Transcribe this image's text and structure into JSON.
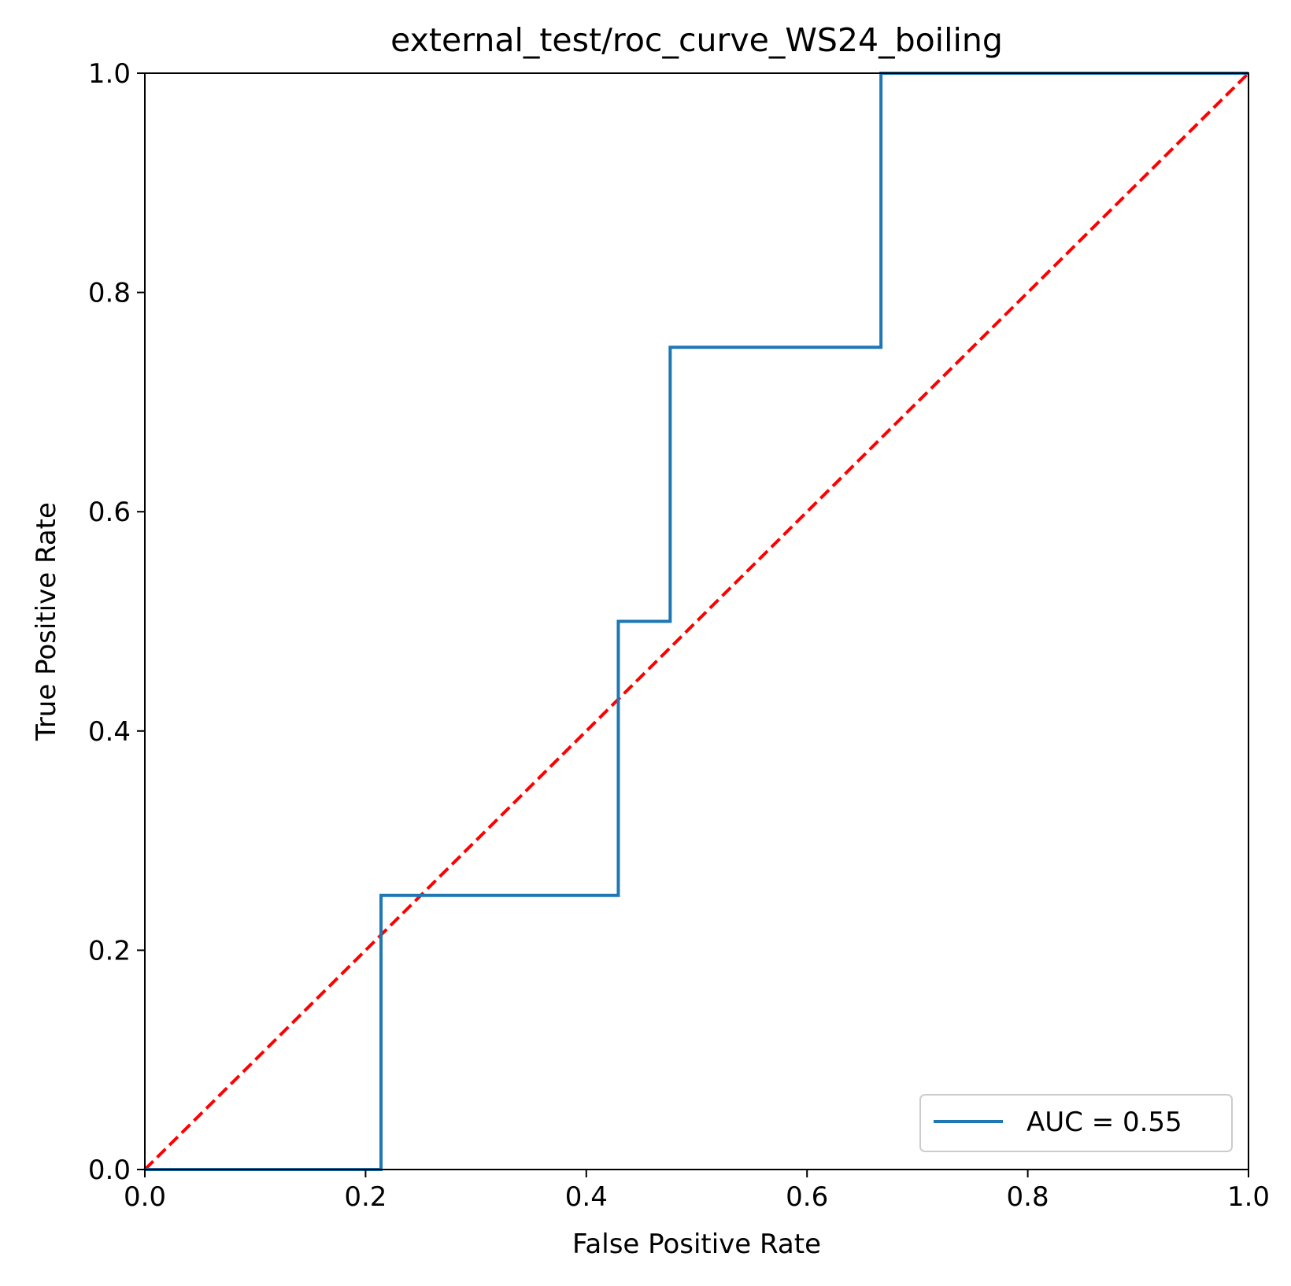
{
  "chart_data": {
    "type": "line",
    "title": "external_test/roc_curve_WS24_boiling",
    "xlabel": "False Positive Rate",
    "ylabel": "True Positive Rate",
    "xlim": [
      0.0,
      1.0
    ],
    "ylim": [
      0.0,
      1.0
    ],
    "xticks": [
      "0.0",
      "0.2",
      "0.4",
      "0.6",
      "0.8",
      "1.0"
    ],
    "yticks": [
      "0.0",
      "0.2",
      "0.4",
      "0.6",
      "0.8",
      "1.0"
    ],
    "grid": false,
    "legend_position": "lower right",
    "series": [
      {
        "name": "AUC = 0.55",
        "color": "#1f77b4",
        "style": "solid",
        "x": [
          0.0,
          0.214,
          0.214,
          0.429,
          0.429,
          0.476,
          0.476,
          0.667,
          0.667,
          1.0
        ],
        "y": [
          0.0,
          0.0,
          0.25,
          0.25,
          0.5,
          0.5,
          0.75,
          0.75,
          1.0,
          1.0
        ]
      },
      {
        "color": "#ff0000",
        "style": "dashed",
        "x": [
          0.0,
          1.0
        ],
        "y": [
          0.0,
          1.0
        ]
      }
    ]
  }
}
